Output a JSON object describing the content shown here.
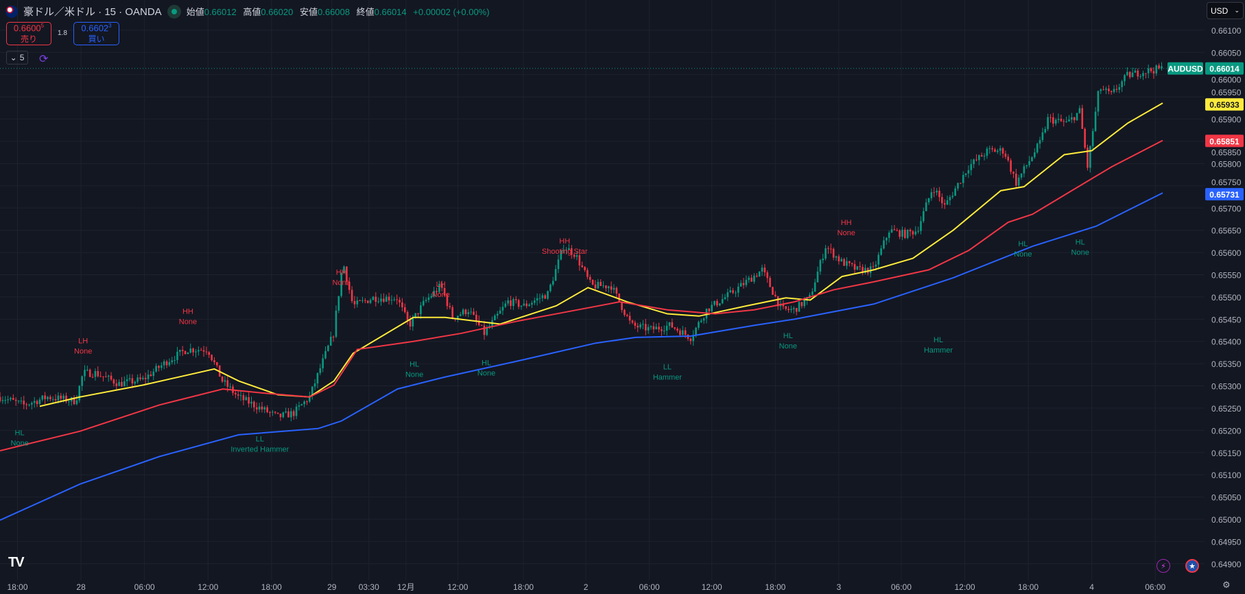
{
  "header": {
    "symbol": "豪ドル／米ドル · 15 · OANDA",
    "open_label": "始値",
    "open": "0.66012",
    "high_label": "高値",
    "high": "0.66020",
    "low_label": "安値",
    "low": "0.66008",
    "close_label": "終値",
    "close": "0.66014",
    "change": "+0.00002 (+0.00%)"
  },
  "trade": {
    "sell_price": "0.6600",
    "sell_sup": "5",
    "sell_label": "売り",
    "spread": "1.8",
    "buy_price": "0.6602",
    "buy_sup": "3",
    "buy_label": "買い"
  },
  "indicators": {
    "collapse_count": "5"
  },
  "currency": {
    "value": "USD"
  },
  "colors": {
    "up": "#089981",
    "down": "#f23645",
    "ema_fast": "#ffeb3b",
    "ema_mid": "#f23645",
    "ema_slow": "#2962ff",
    "bg": "#131722"
  },
  "bottom": {
    "logo": "TV"
  },
  "chart_data": {
    "type": "candlestick",
    "x_unit": "hours since first tick (15-min candles)",
    "xlim": [
      -1.65,
      108.4
    ],
    "ylim": [
      0.6488,
      0.6613
    ],
    "y_ticks": [
      "0.66100",
      "0.66050",
      "0.66000",
      "0.65950",
      "0.65900",
      "0.65850",
      "0.65800",
      "0.65750",
      "0.65700",
      "0.65650",
      "0.65600",
      "0.65550",
      "0.65500",
      "0.65450",
      "0.65400",
      "0.65350",
      "0.65300",
      "0.65250",
      "0.65200",
      "0.65150",
      "0.65100",
      "0.65050",
      "0.65000",
      "0.64950",
      "0.64900"
    ],
    "x_ticks": [
      {
        "h": 0,
        "label": "18:00"
      },
      {
        "h": 6,
        "label": "28"
      },
      {
        "h": 12,
        "label": "06:00"
      },
      {
        "h": 18,
        "label": "12:00"
      },
      {
        "h": 24,
        "label": "18:00"
      },
      {
        "h": 29.7,
        "label": "29"
      },
      {
        "h": 33.2,
        "label": "03:30"
      },
      {
        "h": 36.7,
        "label": "12月"
      },
      {
        "h": 41.6,
        "label": "12:00"
      },
      {
        "h": 47.8,
        "label": "18:00"
      },
      {
        "h": 53.7,
        "label": "2"
      },
      {
        "h": 59.7,
        "label": "06:00"
      },
      {
        "h": 65.6,
        "label": "12:00"
      },
      {
        "h": 71.6,
        "label": "18:00"
      },
      {
        "h": 77.6,
        "label": "3"
      },
      {
        "h": 83.5,
        "label": "06:00"
      },
      {
        "h": 89.5,
        "label": "12:00"
      },
      {
        "h": 95.5,
        "label": "18:00"
      },
      {
        "h": 101.5,
        "label": "4"
      },
      {
        "h": 107.5,
        "label": "06:00"
      }
    ],
    "price_path": [
      [
        -1.65,
        0.65275
      ],
      [
        0.6,
        0.65257
      ],
      [
        2.85,
        0.65275
      ],
      [
        5.5,
        0.65266
      ],
      [
        6.2,
        0.65329
      ],
      [
        7.35,
        0.65329
      ],
      [
        9.6,
        0.65305
      ],
      [
        11.85,
        0.65314
      ],
      [
        14.1,
        0.65355
      ],
      [
        16,
        0.65382
      ],
      [
        18,
        0.65382
      ],
      [
        19.35,
        0.65311
      ],
      [
        20.85,
        0.65275
      ],
      [
        23.1,
        0.65248
      ],
      [
        24.6,
        0.6523
      ],
      [
        26.1,
        0.65239
      ],
      [
        27.6,
        0.65275
      ],
      [
        28.7,
        0.65346
      ],
      [
        29.85,
        0.65418
      ],
      [
        30.75,
        0.65579
      ],
      [
        31.7,
        0.6548
      ],
      [
        33.6,
        0.65498
      ],
      [
        35.85,
        0.65498
      ],
      [
        37,
        0.65436
      ],
      [
        38.5,
        0.6549
      ],
      [
        40,
        0.65525
      ],
      [
        41.1,
        0.65454
      ],
      [
        42.6,
        0.65471
      ],
      [
        44.1,
        0.65418
      ],
      [
        46.35,
        0.6549
      ],
      [
        47.85,
        0.6548
      ],
      [
        50.1,
        0.65507
      ],
      [
        51.6,
        0.65614
      ],
      [
        52.7,
        0.65596
      ],
      [
        54.2,
        0.65525
      ],
      [
        56.1,
        0.65525
      ],
      [
        58,
        0.65436
      ],
      [
        59.85,
        0.65427
      ],
      [
        61.7,
        0.65436
      ],
      [
        63.6,
        0.65409
      ],
      [
        65.1,
        0.65471
      ],
      [
        67.35,
        0.65507
      ],
      [
        70.35,
        0.65561
      ],
      [
        72.2,
        0.65471
      ],
      [
        73.35,
        0.65471
      ],
      [
        74.85,
        0.65498
      ],
      [
        76.35,
        0.65614
      ],
      [
        77.85,
        0.65579
      ],
      [
        79.35,
        0.65561
      ],
      [
        80.85,
        0.65561
      ],
      [
        82.35,
        0.6565
      ],
      [
        83.85,
        0.65641
      ],
      [
        85,
        0.6565
      ],
      [
        86.5,
        0.65748
      ],
      [
        87.6,
        0.65704
      ],
      [
        89.85,
        0.65793
      ],
      [
        91.7,
        0.65829
      ],
      [
        93.2,
        0.65829
      ],
      [
        94.35,
        0.65757
      ],
      [
        96.6,
        0.65846
      ],
      [
        97.35,
        0.659
      ],
      [
        99.2,
        0.65891
      ],
      [
        100.35,
        0.65918
      ],
      [
        101.1,
        0.65793
      ],
      [
        102.2,
        0.65971
      ],
      [
        103.35,
        0.65954
      ],
      [
        104.85,
        0.65998
      ],
      [
        106.35,
        0.66007
      ],
      [
        108.2,
        0.66014
      ]
    ],
    "series": [
      {
        "name": "EMA fast",
        "color": "#ffeb3b",
        "last": "0.65933",
        "points": [
          [
            2.1,
            0.65254
          ],
          [
            5.9,
            0.65275
          ],
          [
            11.9,
            0.65302
          ],
          [
            18.6,
            0.65338
          ],
          [
            20.9,
            0.65311
          ],
          [
            24.6,
            0.6528
          ],
          [
            27.6,
            0.65275
          ],
          [
            29.9,
            0.65311
          ],
          [
            31.7,
            0.65373
          ],
          [
            37.4,
            0.65454
          ],
          [
            40.4,
            0.65454
          ],
          [
            45.6,
            0.65439
          ],
          [
            50.9,
            0.6548
          ],
          [
            53.9,
            0.65521
          ],
          [
            57.6,
            0.65489
          ],
          [
            61.4,
            0.65462
          ],
          [
            64.4,
            0.65457
          ],
          [
            68.9,
            0.6548
          ],
          [
            72.6,
            0.65498
          ],
          [
            74.9,
            0.65493
          ],
          [
            77.9,
            0.65546
          ],
          [
            80.9,
            0.65561
          ],
          [
            84.6,
            0.65587
          ],
          [
            88.4,
            0.6565
          ],
          [
            92.9,
            0.65739
          ],
          [
            95.1,
            0.65748
          ],
          [
            98.9,
            0.6582
          ],
          [
            101.5,
            0.65829
          ],
          [
            104.9,
            0.65891
          ],
          [
            108.2,
            0.65936
          ]
        ]
      },
      {
        "name": "EMA mid",
        "color": "#f23645",
        "last": "0.65851",
        "points": [
          [
            -1.65,
            0.65154
          ],
          [
            5.9,
            0.65198
          ],
          [
            13.4,
            0.65257
          ],
          [
            19.4,
            0.65293
          ],
          [
            23.1,
            0.65284
          ],
          [
            27.6,
            0.65275
          ],
          [
            29.9,
            0.65302
          ],
          [
            32.1,
            0.65382
          ],
          [
            37.4,
            0.654
          ],
          [
            41.9,
            0.65418
          ],
          [
            47.1,
            0.65445
          ],
          [
            50.9,
            0.65462
          ],
          [
            56.9,
            0.65489
          ],
          [
            61.4,
            0.65471
          ],
          [
            65.9,
            0.65462
          ],
          [
            69.6,
            0.65471
          ],
          [
            73.4,
            0.65489
          ],
          [
            77.1,
            0.65516
          ],
          [
            80.9,
            0.65534
          ],
          [
            86.1,
            0.65561
          ],
          [
            89.9,
            0.65605
          ],
          [
            93.6,
            0.65668
          ],
          [
            95.9,
            0.65686
          ],
          [
            99.6,
            0.65739
          ],
          [
            103.4,
            0.65793
          ],
          [
            108.2,
            0.65852
          ]
        ]
      },
      {
        "name": "EMA slow",
        "color": "#2962ff",
        "last": "0.65731",
        "points": [
          [
            -1.65,
            0.64998
          ],
          [
            5.9,
            0.65079
          ],
          [
            13.4,
            0.65141
          ],
          [
            20.9,
            0.6519
          ],
          [
            28.4,
            0.65204
          ],
          [
            30.6,
            0.65221
          ],
          [
            35.9,
            0.65293
          ],
          [
            40.4,
            0.6532
          ],
          [
            47.1,
            0.65355
          ],
          [
            54.6,
            0.65396
          ],
          [
            58.4,
            0.65409
          ],
          [
            63.6,
            0.65412
          ],
          [
            69.6,
            0.65436
          ],
          [
            73.4,
            0.6545
          ],
          [
            80.9,
            0.65484
          ],
          [
            88.4,
            0.65543
          ],
          [
            95.9,
            0.65614
          ],
          [
            101.9,
            0.65659
          ],
          [
            108.2,
            0.65734
          ]
        ]
      }
    ],
    "last_price": {
      "label": "AUDUSD",
      "value": "0.66014"
    },
    "annotations": [
      {
        "h": 0.2,
        "p": 0.65189,
        "kind": "low",
        "l1": "HL",
        "l2": "None"
      },
      {
        "h": 6.2,
        "p": 0.65396,
        "kind": "high",
        "l1": "LH",
        "l2": "None"
      },
      {
        "h": 16.1,
        "p": 0.65462,
        "kind": "high",
        "l1": "HH",
        "l2": "None"
      },
      {
        "h": 22.9,
        "p": 0.65175,
        "kind": "low",
        "l1": "LL",
        "l2": "Inverted Hammer"
      },
      {
        "h": 30.6,
        "p": 0.6555,
        "kind": "high",
        "l1": "HH",
        "l2": "None"
      },
      {
        "h": 37.5,
        "p": 0.65343,
        "kind": "low",
        "l1": "HL",
        "l2": "None"
      },
      {
        "h": 40,
        "p": 0.65523,
        "kind": "high",
        "l1": "LH",
        "l2": "None"
      },
      {
        "h": 44.3,
        "p": 0.65346,
        "kind": "low",
        "l1": "HL",
        "l2": "None"
      },
      {
        "h": 51.7,
        "p": 0.6562,
        "kind": "high",
        "l1": "HH",
        "l2": "Shooting Star"
      },
      {
        "h": 61.4,
        "p": 0.65337,
        "kind": "low",
        "l1": "LL",
        "l2": "Hammer"
      },
      {
        "h": 72.8,
        "p": 0.65407,
        "kind": "low",
        "l1": "HL",
        "l2": "None"
      },
      {
        "h": 78.3,
        "p": 0.65662,
        "kind": "high",
        "l1": "HH",
        "l2": "None"
      },
      {
        "h": 87,
        "p": 0.65398,
        "kind": "low",
        "l1": "HL",
        "l2": "Hammer"
      },
      {
        "h": 95,
        "p": 0.65614,
        "kind": "low",
        "l1": "HL",
        "l2": "None"
      },
      {
        "h": 100.4,
        "p": 0.65618,
        "kind": "low",
        "l1": "HL",
        "l2": "None"
      }
    ]
  }
}
